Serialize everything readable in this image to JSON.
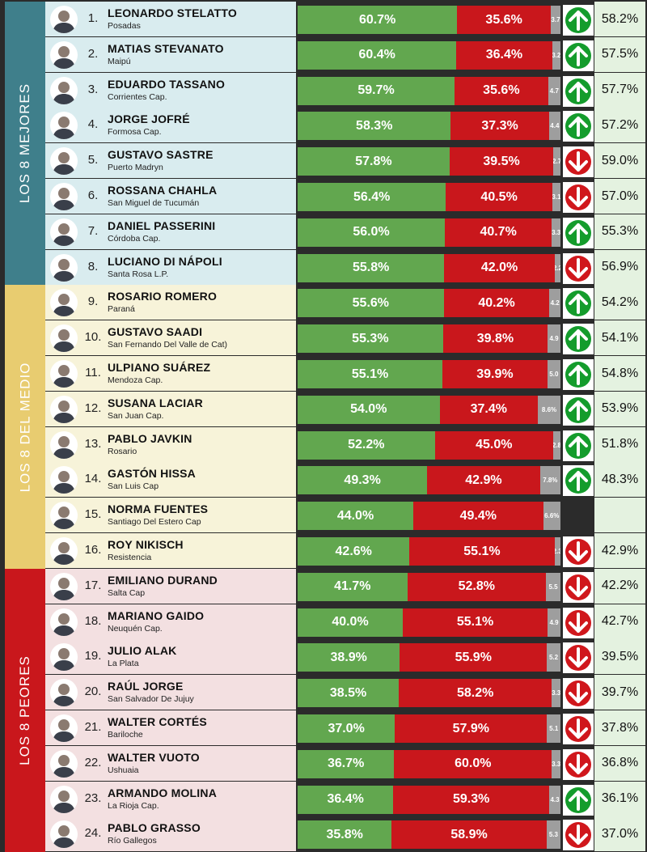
{
  "groups": [
    {
      "label": "LOS 8 MEJORES",
      "color": "#3f7f8b",
      "row_color": "#d9ecef"
    },
    {
      "label": "LOS 8 DEL MEDIO",
      "color": "#e8cc70",
      "row_color": "#f7f3d9"
    },
    {
      "label": "LOS 8 PEORES",
      "color": "#c9171c",
      "row_color": "#f3e0e1"
    }
  ],
  "colors": {
    "positive": "#62a74f",
    "negative": "#c9171c",
    "ns_nc": "#9e9e9e",
    "arrow_up": "#149c2c",
    "arrow_down": "#d0171c",
    "previous_bg": "#e4f2e0"
  },
  "chart_data": {
    "type": "bar",
    "stacked": true,
    "orientation": "horizontal",
    "rows": [
      {
        "rank": "1.",
        "name": "LEONARDO STELATTO",
        "city": "Posadas",
        "positive": 60.7,
        "positive_label": "60.7%",
        "negative": 35.6,
        "negative_label": "35.6%",
        "other": 3.7,
        "other_label": "3.7",
        "trend": "up",
        "previous": "58.2%",
        "group": 0
      },
      {
        "rank": "2.",
        "name": "MATIAS STEVANATO",
        "city": "Maipú",
        "positive": 60.4,
        "positive_label": "60.4%",
        "negative": 36.4,
        "negative_label": "36.4%",
        "other": 3.2,
        "other_label": "3.2",
        "trend": "up",
        "previous": "57.5%",
        "group": 0
      },
      {
        "rank": "3.",
        "name": "EDUARDO TASSANO",
        "city": "Corrientes Cap.",
        "positive": 59.7,
        "positive_label": "59.7%",
        "negative": 35.6,
        "negative_label": "35.6%",
        "other": 4.7,
        "other_label": "4.7",
        "trend": "up",
        "previous": "57.7%",
        "group": 0
      },
      {
        "rank": "4.",
        "name": "JORGE JOFRÉ",
        "city": "Formosa Cap.",
        "positive": 58.3,
        "positive_label": "58.3%",
        "negative": 37.3,
        "negative_label": "37.3%",
        "other": 4.4,
        "other_label": "4.4",
        "trend": "up",
        "previous": "57.2%",
        "group": 0
      },
      {
        "rank": "5.",
        "name": "GUSTAVO SASTRE",
        "city": "Puerto Madryn",
        "positive": 57.8,
        "positive_label": "57.8%",
        "negative": 39.5,
        "negative_label": "39.5%",
        "other": 2.7,
        "other_label": "2.7",
        "trend": "down",
        "previous": "59.0%",
        "group": 0
      },
      {
        "rank": "6.",
        "name": "ROSSANA CHAHLA",
        "city": "San Miguel de Tucumán",
        "positive": 56.4,
        "positive_label": "56.4%",
        "negative": 40.5,
        "negative_label": "40.5%",
        "other": 3.1,
        "other_label": "3.1",
        "trend": "down",
        "previous": "57.0%",
        "group": 0
      },
      {
        "rank": "7.",
        "name": "DANIEL PASSERINI",
        "city": "Córdoba Cap.",
        "positive": 56.0,
        "positive_label": "56.0%",
        "negative": 40.7,
        "negative_label": "40.7%",
        "other": 3.3,
        "other_label": "3.3",
        "trend": "up",
        "previous": "55.3%",
        "group": 0
      },
      {
        "rank": "8.",
        "name": "LUCIANO DI NÁPOLI",
        "city": "Santa Rosa L.P.",
        "positive": 55.8,
        "positive_label": "55.8%",
        "negative": 42.0,
        "negative_label": "42.0%",
        "other": 2.2,
        "other_label": "2.2",
        "trend": "down",
        "previous": "56.9%",
        "group": 0
      },
      {
        "rank": "9.",
        "name": "ROSARIO ROMERO",
        "city": "Paraná",
        "positive": 55.6,
        "positive_label": "55.6%",
        "negative": 40.2,
        "negative_label": "40.2%",
        "other": 4.2,
        "other_label": "4.2",
        "trend": "up",
        "previous": "54.2%",
        "group": 1
      },
      {
        "rank": "10.",
        "name": "GUSTAVO SAADI",
        "city": "San Fernando Del Valle de Cat)",
        "positive": 55.3,
        "positive_label": "55.3%",
        "negative": 39.8,
        "negative_label": "39.8%",
        "other": 4.9,
        "other_label": "4.9",
        "trend": "up",
        "previous": "54.1%",
        "group": 1
      },
      {
        "rank": "11.",
        "name": "ULPIANO SUÁREZ",
        "city": "Mendoza Cap.",
        "positive": 55.1,
        "positive_label": "55.1%",
        "negative": 39.9,
        "negative_label": "39.9%",
        "other": 5.0,
        "other_label": "5.0",
        "trend": "up",
        "previous": "54.8%",
        "group": 1
      },
      {
        "rank": "12.",
        "name": "SUSANA LACIAR",
        "city": "San Juan Cap.",
        "positive": 54.0,
        "positive_label": "54.0%",
        "negative": 37.4,
        "negative_label": "37.4%",
        "other": 8.6,
        "other_label": "8.6%",
        "trend": "up",
        "previous": "53.9%",
        "group": 1
      },
      {
        "rank": "13.",
        "name": "PABLO JAVKIN",
        "city": "Rosario",
        "positive": 52.2,
        "positive_label": "52.2%",
        "negative": 45.0,
        "negative_label": "45.0%",
        "other": 2.8,
        "other_label": "2.8",
        "trend": "up",
        "previous": "51.8%",
        "group": 1
      },
      {
        "rank": "14.",
        "name": "GASTÓN HISSA",
        "city": "San Luis Cap",
        "positive": 49.3,
        "positive_label": "49.3%",
        "negative": 42.9,
        "negative_label": "42.9%",
        "other": 7.8,
        "other_label": "7.8%",
        "trend": "up",
        "previous": "48.3%",
        "group": 1
      },
      {
        "rank": "15.",
        "name": "NORMA FUENTES",
        "city": "Santiago Del Estero Cap",
        "positive": 44.0,
        "positive_label": "44.0%",
        "negative": 49.4,
        "negative_label": "49.4%",
        "other": 6.6,
        "other_label": "6.6%",
        "trend": "none",
        "previous": "",
        "group": 1
      },
      {
        "rank": "16.",
        "name": "ROY NIKISCH",
        "city": "Resistencia",
        "positive": 42.6,
        "positive_label": "42.6%",
        "negative": 55.1,
        "negative_label": "55.1%",
        "other": 2.3,
        "other_label": "2.3",
        "trend": "down",
        "previous": "42.9%",
        "group": 1
      },
      {
        "rank": "17.",
        "name": "EMILIANO DURAND",
        "city": "Salta Cap",
        "positive": 41.7,
        "positive_label": "41.7%",
        "negative": 52.8,
        "negative_label": "52.8%",
        "other": 5.5,
        "other_label": "5.5",
        "trend": "down",
        "previous": "42.2%",
        "group": 2
      },
      {
        "rank": "18.",
        "name": "MARIANO GAIDO",
        "city": "Neuquén Cap.",
        "positive": 40.0,
        "positive_label": "40.0%",
        "negative": 55.1,
        "negative_label": "55.1%",
        "other": 4.9,
        "other_label": "4.9",
        "trend": "down",
        "previous": "42.7%",
        "group": 2
      },
      {
        "rank": "19.",
        "name": "JULIO ALAK",
        "city": "La Plata",
        "positive": 38.9,
        "positive_label": "38.9%",
        "negative": 55.9,
        "negative_label": "55.9%",
        "other": 5.2,
        "other_label": "5.2",
        "trend": "down",
        "previous": "39.5%",
        "group": 2
      },
      {
        "rank": "20.",
        "name": "RAÚL JORGE",
        "city": "San Salvador De Jujuy",
        "positive": 38.5,
        "positive_label": "38.5%",
        "negative": 58.2,
        "negative_label": "58.2%",
        "other": 3.3,
        "other_label": "3.3",
        "trend": "down",
        "previous": "39.7%",
        "group": 2
      },
      {
        "rank": "21.",
        "name": "WALTER CORTÉS",
        "city": "Bariloche",
        "positive": 37.0,
        "positive_label": "37.0%",
        "negative": 57.9,
        "negative_label": "57.9%",
        "other": 5.1,
        "other_label": "5.1",
        "trend": "down",
        "previous": "37.8%",
        "group": 2
      },
      {
        "rank": "22.",
        "name": "WALTER VUOTO",
        "city": "Ushuaia",
        "positive": 36.7,
        "positive_label": "36.7%",
        "negative": 60.0,
        "negative_label": "60.0%",
        "other": 3.3,
        "other_label": "3.3",
        "trend": "down",
        "previous": "36.8%",
        "group": 2
      },
      {
        "rank": "23.",
        "name": "ARMANDO MOLINA",
        "city": "La Rioja Cap.",
        "positive": 36.4,
        "positive_label": "36.4%",
        "negative": 59.3,
        "negative_label": "59.3%",
        "other": 4.3,
        "other_label": "4.3",
        "trend": "up",
        "previous": "36.1%",
        "group": 2
      },
      {
        "rank": "24.",
        "name": "PABLO GRASSO",
        "city": "Río Gallegos",
        "positive": 35.8,
        "positive_label": "35.8%",
        "negative": 58.9,
        "negative_label": "58.9%",
        "other": 5.3,
        "other_label": "5.3",
        "trend": "down",
        "previous": "37.0%",
        "group": 2
      }
    ]
  }
}
